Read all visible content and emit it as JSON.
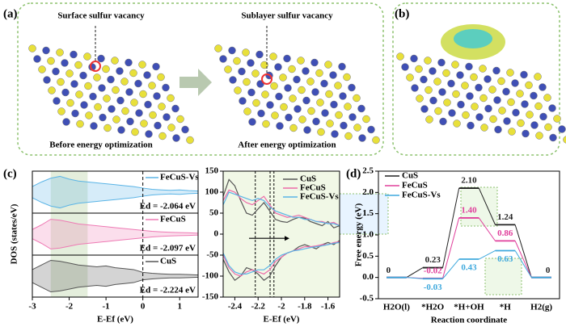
{
  "panels": {
    "a": {
      "label": "(a)",
      "left_title": "Surface sulfur vacancy",
      "right_title": "Sublayer sulfur vacancy",
      "left_caption": "Before energy optimization",
      "right_caption": "After energy optimization"
    },
    "b": {
      "label": "(b)"
    },
    "c": {
      "label": "(c)"
    },
    "d": {
      "label": "(d)"
    }
  },
  "chart_data": [
    {
      "type": "dos",
      "xlabel": "E-Ef (eV)",
      "ylabel": "DOS (states/eV)",
      "xlim": [
        -3,
        1.5
      ],
      "xticks": [
        -3,
        -2,
        -1,
        0,
        1
      ],
      "ylim": [
        -1,
        1
      ],
      "shade": [
        -2.5,
        -1.5
      ],
      "vline": 0,
      "x": [
        -3,
        -2.75,
        -2.5,
        -2.25,
        -2,
        -1.75,
        -1.5,
        -1.25,
        -1,
        -0.75,
        -0.5,
        -0.25,
        0,
        0.25,
        0.5,
        0.75,
        1,
        1.25,
        1.5
      ],
      "series": [
        {
          "name": "FeCuS-Vs",
          "color": "#5ab4e6",
          "annotation": "Ed = -2.064 eV",
          "values": [
            0.3,
            0.55,
            0.75,
            0.85,
            0.7,
            0.6,
            0.55,
            0.5,
            0.45,
            0.4,
            0.35,
            0.3,
            0.22,
            0.15,
            0.12,
            0.1,
            0.12,
            0.08,
            0.06
          ]
        },
        {
          "name": "FeCuS",
          "color": "#ee7ab4",
          "annotation": "Ed = -2.097 eV",
          "values": [
            0.25,
            0.5,
            0.8,
            0.75,
            0.65,
            0.55,
            0.5,
            0.45,
            0.4,
            0.35,
            0.3,
            0.25,
            0.2,
            0.15,
            0.12,
            0.1,
            0.08,
            0.07,
            0.05
          ]
        },
        {
          "name": "CuS",
          "color": "#555555",
          "annotation": "Ed = -2.224 eV",
          "values": [
            0.35,
            0.6,
            0.85,
            0.8,
            0.7,
            0.6,
            0.55,
            0.5,
            0.55,
            0.45,
            0.4,
            0.35,
            0.2,
            0.15,
            0.12,
            0.1,
            0.1,
            0.08,
            0.06
          ]
        }
      ]
    },
    {
      "type": "line",
      "xlabel": "E-Ef (eV)",
      "xlim": [
        -2.5,
        -1.5
      ],
      "xticks": [
        -2.4,
        -2.2,
        -2.0,
        -1.8,
        -1.6
      ],
      "ylim": [
        -150,
        150
      ],
      "yticks": [
        -150,
        -100,
        -50,
        0,
        50,
        100,
        150
      ],
      "vlines": [
        -2.224,
        -2.097,
        -2.064
      ],
      "x": [
        -2.5,
        -2.45,
        -2.4,
        -2.35,
        -2.3,
        -2.25,
        -2.2,
        -2.15,
        -2.1,
        -2.05,
        -2,
        -1.95,
        -1.9,
        -1.85,
        -1.8,
        -1.75,
        -1.7,
        -1.65,
        -1.6,
        -1.55,
        -1.5
      ],
      "series": [
        {
          "name": "CuS",
          "color": "#555555",
          "values": [
            90,
            130,
            115,
            80,
            50,
            45,
            60,
            75,
            55,
            35,
            30,
            28,
            35,
            40,
            38,
            30,
            25,
            20,
            30,
            15,
            20
          ],
          "values_lower": [
            -60,
            -90,
            -110,
            -100,
            -80,
            -85,
            -95,
            -110,
            -100,
            -75,
            -55,
            -45,
            -40,
            -30,
            -25,
            -30,
            -35,
            -25,
            -20,
            -25,
            -15
          ]
        },
        {
          "name": "FeCuS",
          "color": "#ee6aa8",
          "values": [
            80,
            105,
            100,
            85,
            75,
            70,
            80,
            90,
            70,
            50,
            45,
            40,
            42,
            45,
            40,
            35,
            30,
            30,
            25,
            28,
            20
          ],
          "values_lower": [
            -50,
            -80,
            -95,
            -100,
            -90,
            -85,
            -90,
            -95,
            -85,
            -65,
            -55,
            -45,
            -40,
            -35,
            -30,
            -30,
            -28,
            -25,
            -25,
            -20,
            -18
          ]
        },
        {
          "name": "FeCuS-Vs",
          "color": "#5ab4e6",
          "values": [
            70,
            100,
            95,
            90,
            85,
            80,
            85,
            80,
            65,
            55,
            50,
            45,
            40,
            40,
            35,
            35,
            30,
            28,
            25,
            25,
            20
          ],
          "values_lower": [
            -45,
            -75,
            -90,
            -95,
            -95,
            -90,
            -85,
            -85,
            -75,
            -60,
            -50,
            -45,
            -40,
            -38,
            -35,
            -32,
            -30,
            -28,
            -25,
            -22,
            -20
          ]
        }
      ]
    },
    {
      "type": "energy",
      "ylabel": "Free energy (eV)",
      "xlabel": "Reaction coordinate",
      "categories": [
        "H2O(l)",
        "*H2O",
        "*H+OH",
        "*H",
        "H2(g)"
      ],
      "ylim": [
        -0.5,
        2.5
      ],
      "yticks": [
        -0.5,
        {
          "value": 0,
          "label": "0.0"
        },
        0.5,
        {
          "value": 1,
          "label": "1.0"
        },
        1.5,
        {
          "value": 2,
          "label": "2.0"
        },
        2.5
      ],
      "series": [
        {
          "name": "CuS",
          "color": "#222222",
          "values": [
            0,
            0.23,
            2.1,
            1.24,
            0
          ],
          "value_labels": [
            "0",
            "0.23",
            "2.10",
            "1.24",
            "0"
          ]
        },
        {
          "name": "FeCuS",
          "color": "#e0409c",
          "values": [
            0,
            -0.02,
            1.4,
            0.86,
            0
          ],
          "value_labels": [
            null,
            "-0.02",
            "1.40",
            "0.86",
            null
          ]
        },
        {
          "name": "FeCuS-Vs",
          "color": "#3fa9dd",
          "values": [
            0,
            -0.03,
            0.43,
            0.63,
            0
          ],
          "value_labels": [
            null,
            "-0.03",
            "0.43",
            "0.63",
            null
          ]
        }
      ]
    }
  ]
}
